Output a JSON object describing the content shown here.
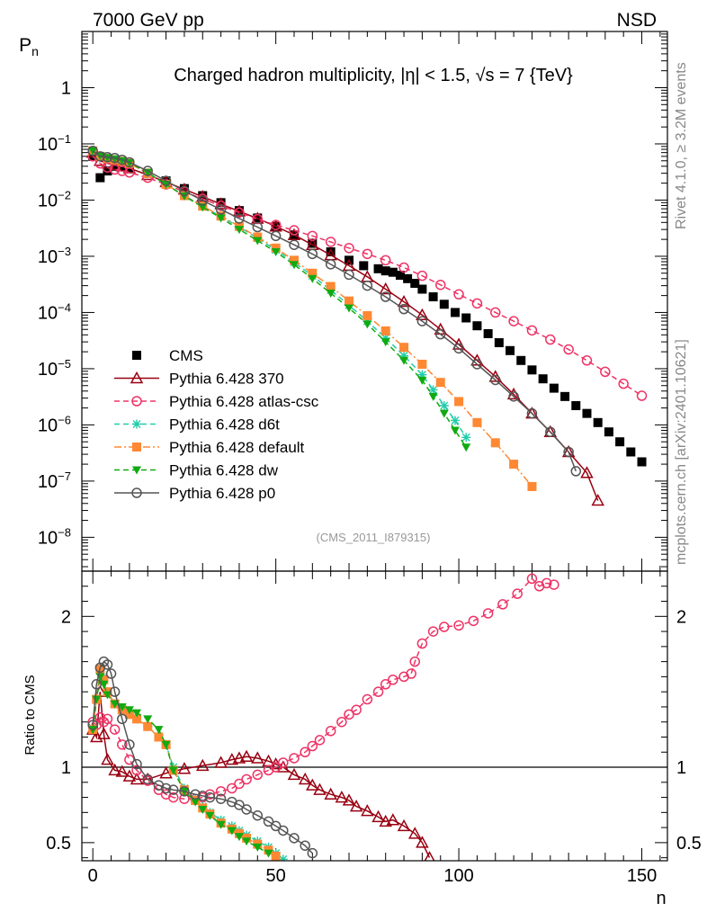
{
  "header": {
    "left": "7000 GeV pp",
    "right": "NSD",
    "side_top": "Rivet 4.1.0, ≥ 3.2M events",
    "side_bottom": "mcplots.cern.ch [arXiv:2401.10621]",
    "watermark": "(CMS_2011_I879315)"
  },
  "chart_data": [
    {
      "type": "scatter",
      "panel": "main",
      "title": "Charged hadron multiplicity, |η| < 1.5, √s = 7 {TeV}",
      "xlabel": "n",
      "ylabel": "P",
      "ylabel_sub": "n",
      "yscale": "log",
      "xlim": [
        -3,
        157
      ],
      "ylim": [
        2.5e-09,
        10
      ],
      "ytick_labels": [
        {
          "v": 1,
          "b": "1",
          "e": ""
        },
        {
          "v": 0.1,
          "b": "10",
          "e": "−1"
        },
        {
          "v": 0.01,
          "b": "10",
          "e": "−2"
        },
        {
          "v": 0.001,
          "b": "10",
          "e": "−3"
        },
        {
          "v": 0.0001,
          "b": "10",
          "e": "−4"
        },
        {
          "v": 1e-05,
          "b": "10",
          "e": "−5"
        },
        {
          "v": 1e-06,
          "b": "10",
          "e": "−6"
        },
        {
          "v": 1e-07,
          "b": "10",
          "e": "−7"
        },
        {
          "v": 1e-08,
          "b": "10",
          "e": "−8"
        }
      ],
      "legend_position": "bottom-left",
      "series": [
        {
          "name": "CMS",
          "color": "#000000",
          "marker": "filled-square",
          "line": "none",
          "x": [
            0,
            2,
            4,
            6,
            8,
            10,
            15,
            20,
            25,
            30,
            35,
            40,
            45,
            50,
            55,
            60,
            65,
            70,
            74,
            78,
            80,
            82,
            84,
            86,
            88,
            90,
            93,
            96,
            99,
            102,
            105,
            108,
            111,
            114,
            117,
            120,
            123,
            126,
            129,
            132,
            135,
            138,
            141,
            144,
            147,
            150
          ],
          "y": [
            0.06,
            0.025,
            0.033,
            0.04,
            0.04,
            0.038,
            0.03,
            0.022,
            0.016,
            0.012,
            0.009,
            0.0065,
            0.0048,
            0.0034,
            0.0024,
            0.0017,
            0.0012,
            0.00085,
            0.00068,
            0.0006,
            0.00055,
            0.00052,
            0.00046,
            0.0004,
            0.00033,
            0.00026,
            0.00019,
            0.00014,
            0.0001,
            8e-05,
            5.8e-05,
            4.2e-05,
            2.9e-05,
            2.1e-05,
            1.4e-05,
            9.5e-06,
            6.6e-06,
            4.5e-06,
            3.2e-06,
            2.2e-06,
            1.6e-06,
            1.1e-06,
            7.5e-07,
            5e-07,
            3.3e-07,
            2.2e-07
          ]
        },
        {
          "name": "Pythia 6.428 370",
          "color": "#990011",
          "marker": "open-triangle",
          "line": "solid",
          "x": [
            0,
            2,
            4,
            6,
            8,
            10,
            15,
            20,
            25,
            30,
            35,
            40,
            45,
            50,
            55,
            60,
            65,
            70,
            75,
            80,
            85,
            90,
            95,
            100,
            105,
            110,
            115,
            120,
            125,
            130,
            135,
            138
          ],
          "y": [
            0.07,
            0.05,
            0.045,
            0.042,
            0.04,
            0.037,
            0.028,
            0.021,
            0.0155,
            0.0115,
            0.0085,
            0.0063,
            0.0047,
            0.0034,
            0.0024,
            0.0016,
            0.00105,
            0.00068,
            0.00043,
            0.00026,
            0.000155,
            9e-05,
            5e-05,
            2.7e-05,
            1.4e-05,
            7.2e-06,
            3.5e-06,
            1.6e-06,
            7.5e-07,
            3.3e-07,
            1.4e-07,
            4.5e-08
          ]
        },
        {
          "name": "Pythia 6.428 atlas-csc",
          "color": "#ee3366",
          "marker": "open-circle",
          "line": "dashed",
          "x": [
            0,
            2,
            4,
            6,
            8,
            10,
            15,
            20,
            25,
            30,
            35,
            40,
            45,
            50,
            55,
            60,
            65,
            70,
            75,
            80,
            85,
            90,
            95,
            100,
            105,
            110,
            115,
            120,
            125,
            130,
            135,
            140,
            145,
            150
          ],
          "y": [
            0.06,
            0.045,
            0.038,
            0.035,
            0.033,
            0.031,
            0.025,
            0.019,
            0.014,
            0.0105,
            0.0079,
            0.006,
            0.0046,
            0.0036,
            0.0029,
            0.0023,
            0.0018,
            0.0014,
            0.0011,
            0.00085,
            0.00063,
            0.00045,
            0.00031,
            0.00021,
            0.000145,
            0.0001,
            7e-05,
            4.8e-05,
            3.3e-05,
            2.2e-05,
            1.4e-05,
            8.8e-06,
            5.4e-06,
            3.3e-06
          ]
        },
        {
          "name": "Pythia 6.428 d6t",
          "color": "#22ccaa",
          "marker": "star",
          "line": "dashed",
          "x": [
            0,
            2,
            4,
            6,
            8,
            10,
            15,
            20,
            25,
            30,
            35,
            40,
            45,
            50,
            55,
            60,
            65,
            70,
            75,
            80,
            85,
            90,
            93,
            96,
            99,
            102
          ],
          "y": [
            0.075,
            0.06,
            0.055,
            0.052,
            0.049,
            0.045,
            0.03,
            0.019,
            0.012,
            0.0078,
            0.0051,
            0.0033,
            0.0021,
            0.0013,
            0.00078,
            0.00045,
            0.00025,
            0.000135,
            7e-05,
            3.5e-05,
            1.7e-05,
            7.8e-06,
            4.2e-06,
            2.2e-06,
            1.2e-06,
            6e-07
          ]
        },
        {
          "name": "Pythia 6.428 default",
          "color": "#ff8833",
          "marker": "filled-square",
          "line": "dashdot",
          "x": [
            0,
            2,
            4,
            6,
            8,
            10,
            15,
            20,
            25,
            30,
            35,
            40,
            45,
            50,
            55,
            60,
            65,
            70,
            75,
            80,
            85,
            90,
            95,
            100,
            105,
            110,
            115,
            120
          ],
          "y": [
            0.075,
            0.06,
            0.055,
            0.052,
            0.049,
            0.045,
            0.03,
            0.019,
            0.012,
            0.0078,
            0.0052,
            0.0034,
            0.0022,
            0.0014,
            0.00085,
            0.0005,
            0.00029,
            0.00016,
            8.8e-05,
            4.7e-05,
            2.4e-05,
            1.2e-05,
            5.7e-06,
            2.6e-06,
            1.1e-06,
            4.8e-07,
            2e-07,
            8e-08
          ]
        },
        {
          "name": "Pythia 6.428 dw",
          "color": "#11aa11",
          "marker": "filled-triangle-down",
          "line": "dashed",
          "x": [
            0,
            2,
            4,
            6,
            8,
            10,
            15,
            20,
            25,
            30,
            35,
            40,
            45,
            50,
            55,
            60,
            65,
            70,
            75,
            80,
            85,
            90,
            93,
            96,
            99,
            102
          ],
          "y": [
            0.075,
            0.062,
            0.057,
            0.054,
            0.05,
            0.046,
            0.031,
            0.019,
            0.0118,
            0.0075,
            0.0048,
            0.003,
            0.0019,
            0.0012,
            0.00071,
            0.0004,
            0.00022,
            0.00012,
            6.2e-05,
            3e-05,
            1.4e-05,
            6.2e-06,
            3.2e-06,
            1.6e-06,
            8e-07,
            4e-07
          ]
        },
        {
          "name": "Pythia 6.428 p0",
          "color": "#555555",
          "marker": "open-circle",
          "line": "solid",
          "x": [
            0,
            2,
            4,
            6,
            8,
            10,
            15,
            20,
            25,
            30,
            35,
            40,
            45,
            50,
            55,
            60,
            65,
            70,
            75,
            80,
            85,
            90,
            95,
            100,
            105,
            110,
            115,
            120,
            125,
            130,
            132
          ],
          "y": [
            0.075,
            0.06,
            0.058,
            0.056,
            0.052,
            0.047,
            0.033,
            0.022,
            0.0145,
            0.0098,
            0.0068,
            0.0047,
            0.0033,
            0.0023,
            0.0016,
            0.0011,
            0.00072,
            0.00047,
            0.0003,
            0.00019,
            0.000115,
            7e-05,
            4.1e-05,
            2.3e-05,
            1.2e-05,
            6.3e-06,
            3.2e-06,
            1.6e-06,
            7.5e-07,
            3.3e-07,
            1.5e-07
          ]
        }
      ]
    },
    {
      "type": "line",
      "panel": "ratio",
      "ylabel": "Ratio to CMS",
      "xlabel": "n",
      "xlim": [
        -3,
        157
      ],
      "ylim": [
        0.38,
        2.3
      ],
      "yticks": [
        0.5,
        1,
        2
      ],
      "ytick_labels": [
        "0.5",
        "1",
        "2"
      ],
      "xticks": [
        0,
        50,
        100,
        150
      ],
      "xtick_labels": [
        "0",
        "50",
        "100",
        "150"
      ],
      "reference_line": 1,
      "series": [
        {
          "name": "Pythia 6.428 370",
          "color": "#990011",
          "marker": "open-triangle",
          "line": "solid",
          "x": [
            0,
            1,
            2,
            3,
            4,
            6,
            8,
            10,
            12,
            15,
            20,
            25,
            30,
            35,
            38,
            40,
            42,
            45,
            48,
            50,
            52,
            55,
            58,
            60,
            62,
            65,
            68,
            70,
            72,
            75,
            78,
            80,
            82,
            85,
            88,
            90,
            92
          ],
          "y": [
            1.25,
            1.2,
            1.5,
            1.22,
            1.05,
            0.98,
            0.97,
            0.94,
            0.92,
            0.92,
            0.96,
            0.99,
            1.01,
            1.03,
            1.05,
            1.06,
            1.07,
            1.06,
            1.04,
            1.02,
            1.0,
            0.95,
            0.92,
            0.88,
            0.85,
            0.82,
            0.8,
            0.78,
            0.74,
            0.71,
            0.67,
            0.64,
            0.65,
            0.61,
            0.56,
            0.5,
            0.4
          ]
        },
        {
          "name": "Pythia 6.428 atlas-csc",
          "color": "#ee3366",
          "marker": "open-circle",
          "line": "dashed",
          "x": [
            0,
            1,
            2,
            3,
            4,
            6,
            8,
            10,
            12,
            15,
            18,
            20,
            22,
            25,
            28,
            30,
            32,
            35,
            38,
            40,
            42,
            45,
            48,
            50,
            52,
            55,
            58,
            60,
            62,
            65,
            68,
            70,
            72,
            75,
            78,
            80,
            82,
            85,
            87,
            88,
            90,
            93,
            96,
            100,
            104,
            108,
            112,
            116,
            120,
            122,
            124,
            126
          ],
          "y": [
            1.3,
            1.28,
            1.33,
            1.3,
            1.32,
            1.25,
            1.15,
            1.05,
            0.98,
            0.91,
            0.85,
            0.82,
            0.8,
            0.79,
            0.79,
            0.8,
            0.82,
            0.84,
            0.86,
            0.89,
            0.92,
            0.95,
            0.98,
            1.0,
            1.03,
            1.06,
            1.1,
            1.14,
            1.18,
            1.24,
            1.3,
            1.35,
            1.38,
            1.45,
            1.5,
            1.55,
            1.58,
            1.6,
            1.62,
            1.7,
            1.82,
            1.9,
            1.93,
            1.94,
            1.97,
            2.02,
            2.08,
            2.15,
            2.25,
            2.2,
            2.22,
            2.21
          ]
        },
        {
          "name": "Pythia 6.428 d6t",
          "color": "#22ccaa",
          "marker": "star",
          "line": "dashed",
          "x": [
            0,
            1,
            2,
            3,
            4,
            6,
            8,
            10,
            12,
            15,
            18,
            20,
            22,
            25,
            28,
            30,
            32,
            35,
            38,
            40,
            42,
            45,
            48,
            50,
            52
          ],
          "y": [
            1.25,
            1.45,
            1.65,
            1.6,
            1.5,
            1.42,
            1.38,
            1.35,
            1.32,
            1.27,
            1.2,
            1.15,
            1.0,
            0.86,
            0.79,
            0.74,
            0.7,
            0.65,
            0.61,
            0.58,
            0.55,
            0.51,
            0.47,
            0.43,
            0.39
          ]
        },
        {
          "name": "Pythia 6.428 default",
          "color": "#ff8833",
          "marker": "filled-square",
          "line": "dashdot",
          "x": [
            0,
            1,
            2,
            3,
            4,
            6,
            8,
            10,
            12,
            15,
            18,
            20,
            22,
            25,
            28,
            30,
            32,
            35,
            38,
            40,
            42,
            45,
            48,
            50
          ],
          "y": [
            1.25,
            1.45,
            1.65,
            1.58,
            1.5,
            1.42,
            1.38,
            1.35,
            1.32,
            1.27,
            1.2,
            1.15,
            0.98,
            0.85,
            0.78,
            0.73,
            0.69,
            0.63,
            0.59,
            0.56,
            0.53,
            0.49,
            0.45,
            0.41
          ]
        },
        {
          "name": "Pythia 6.428 dw",
          "color": "#11aa11",
          "marker": "filled-triangle-down",
          "line": "dashed",
          "x": [
            0,
            1,
            2,
            3,
            4,
            6,
            8,
            10,
            12,
            15,
            18,
            20,
            22,
            25,
            28,
            30,
            32,
            35,
            38,
            40,
            42,
            45,
            48
          ],
          "y": [
            1.25,
            1.45,
            1.6,
            1.55,
            1.48,
            1.42,
            1.4,
            1.38,
            1.36,
            1.32,
            1.25,
            1.15,
            0.98,
            0.84,
            0.77,
            0.72,
            0.68,
            0.62,
            0.58,
            0.54,
            0.51,
            0.47,
            0.43
          ]
        },
        {
          "name": "Pythia 6.428 p0",
          "color": "#555555",
          "marker": "open-circle",
          "line": "solid",
          "x": [
            0,
            1,
            2,
            3,
            4,
            5,
            6,
            8,
            10,
            12,
            15,
            18,
            20,
            22,
            25,
            28,
            30,
            32,
            35,
            38,
            40,
            42,
            45,
            48,
            50,
            52,
            55,
            58,
            60
          ],
          "y": [
            1.28,
            1.55,
            1.66,
            1.7,
            1.68,
            1.62,
            1.5,
            1.32,
            1.15,
            1.02,
            0.92,
            0.88,
            0.86,
            0.85,
            0.84,
            0.82,
            0.81,
            0.8,
            0.79,
            0.77,
            0.75,
            0.72,
            0.68,
            0.64,
            0.61,
            0.58,
            0.53,
            0.48,
            0.43
          ]
        }
      ]
    }
  ]
}
